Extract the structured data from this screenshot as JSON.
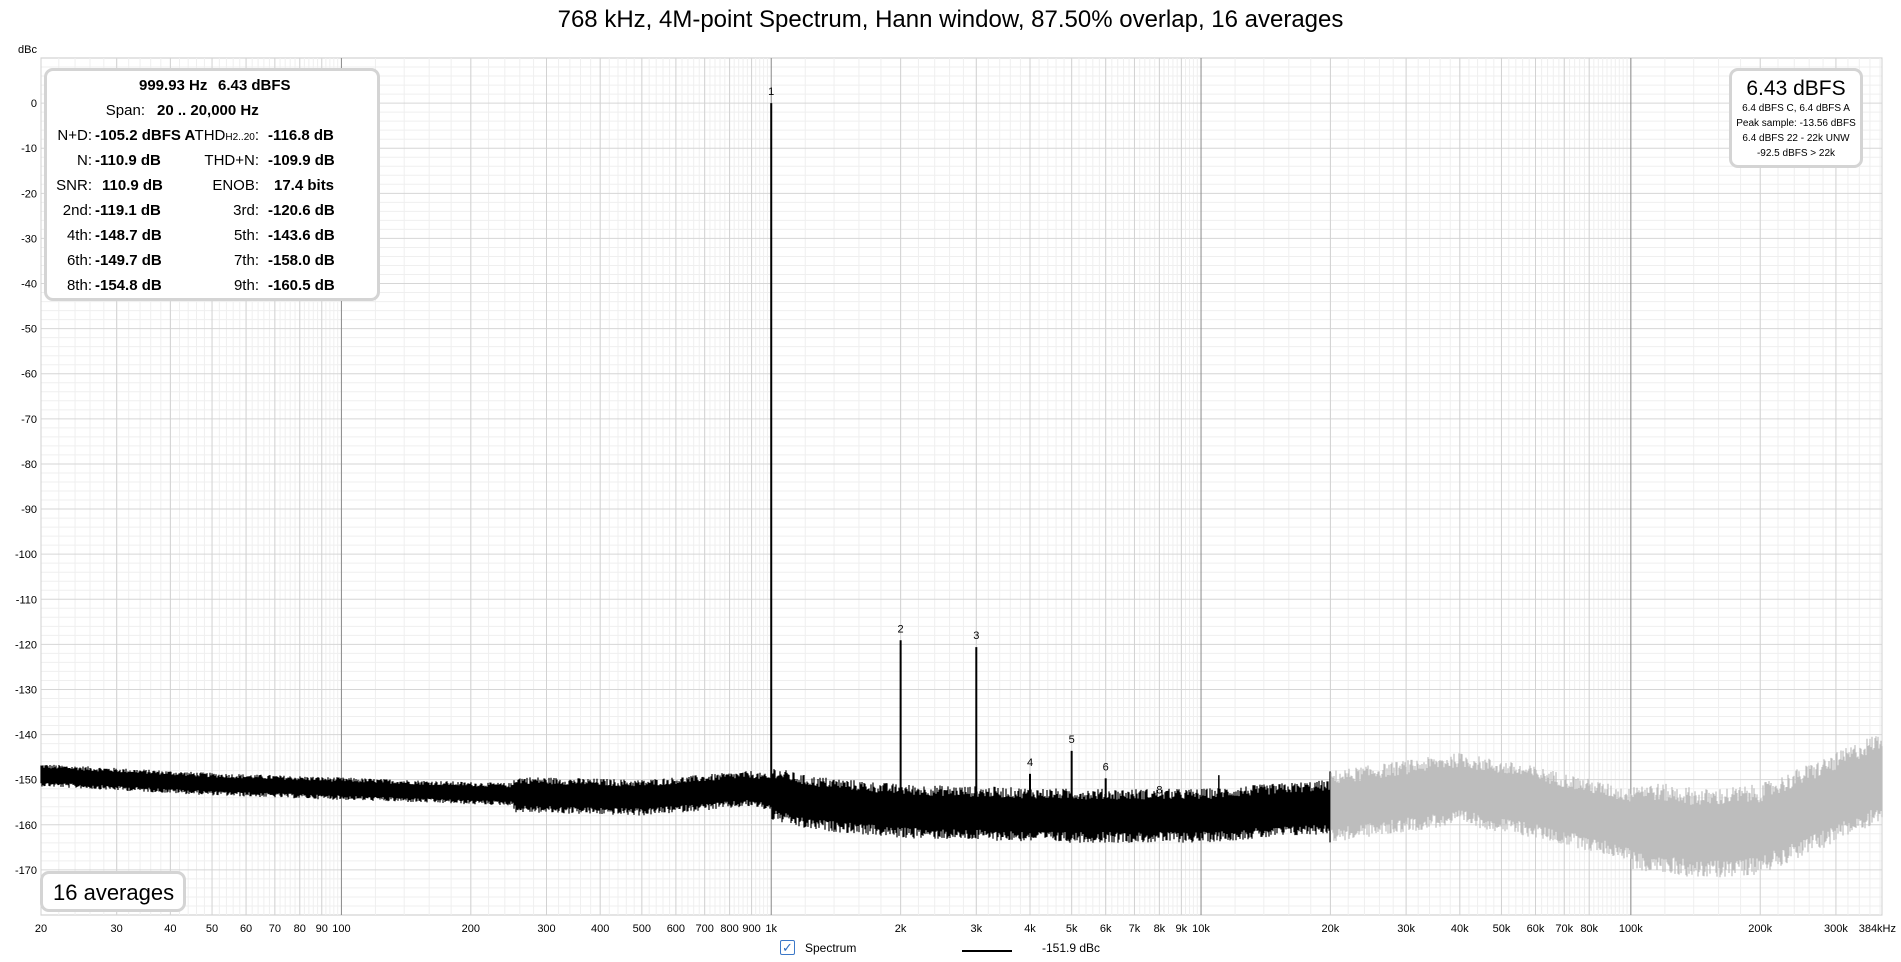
{
  "chart_data": {
    "type": "line",
    "title": "768 kHz, 4M-point Spectrum, Hann window, 87.50% overlap, 16 averages",
    "ylabel": "dBc",
    "x_scale": "log",
    "xlim": [
      20,
      384000
    ],
    "ylim": [
      -180,
      10
    ],
    "x_tick_labels": [
      {
        "x": 20,
        "label": "20"
      },
      {
        "x": 30,
        "label": "30"
      },
      {
        "x": 40,
        "label": "40"
      },
      {
        "x": 50,
        "label": "50"
      },
      {
        "x": 60,
        "label": "60"
      },
      {
        "x": 70,
        "label": "70"
      },
      {
        "x": 80,
        "label": "80"
      },
      {
        "x": 90,
        "label": "90"
      },
      {
        "x": 100,
        "label": "100"
      },
      {
        "x": 200,
        "label": "200"
      },
      {
        "x": 300,
        "label": "300"
      },
      {
        "x": 400,
        "label": "400"
      },
      {
        "x": 500,
        "label": "500"
      },
      {
        "x": 600,
        "label": "600"
      },
      {
        "x": 700,
        "label": "700"
      },
      {
        "x": 800,
        "label": "800"
      },
      {
        "x": 900,
        "label": "900"
      },
      {
        "x": 1000,
        "label": "1k"
      },
      {
        "x": 2000,
        "label": "2k"
      },
      {
        "x": 3000,
        "label": "3k"
      },
      {
        "x": 4000,
        "label": "4k"
      },
      {
        "x": 5000,
        "label": "5k"
      },
      {
        "x": 6000,
        "label": "6k"
      },
      {
        "x": 7000,
        "label": "7k"
      },
      {
        "x": 8000,
        "label": "8k"
      },
      {
        "x": 9000,
        "label": "9k"
      },
      {
        "x": 10000,
        "label": "10k"
      },
      {
        "x": 20000,
        "label": "20k"
      },
      {
        "x": 30000,
        "label": "30k"
      },
      {
        "x": 40000,
        "label": "40k"
      },
      {
        "x": 50000,
        "label": "50k"
      },
      {
        "x": 60000,
        "label": "60k"
      },
      {
        "x": 70000,
        "label": "70k"
      },
      {
        "x": 80000,
        "label": "80k"
      },
      {
        "x": 100000,
        "label": "100k"
      },
      {
        "x": 200000,
        "label": "200k"
      },
      {
        "x": 300000,
        "label": "300k"
      },
      {
        "x": 384000,
        "label": "384kHz"
      }
    ],
    "y_ticks": [
      0,
      -10,
      -20,
      -30,
      -40,
      -50,
      -60,
      -70,
      -80,
      -90,
      -100,
      -110,
      -120,
      -130,
      -140,
      -150,
      -160,
      -170
    ],
    "series": [
      {
        "name": "Spectrum",
        "color": "#000000",
        "out_of_band_color": "#bdbdbd",
        "out_of_band_from_hz": 20000,
        "noise_floor": {
          "freq": [
            20,
            50,
            100,
            200,
            500,
            900,
            1000,
            1200,
            2000,
            5000,
            10000,
            20000,
            40000,
            60000,
            100000,
            150000,
            200000,
            300000,
            384000
          ],
          "level": [
            -149,
            -151,
            -152,
            -153,
            -154,
            -152,
            -153,
            -155,
            -157,
            -158,
            -158,
            -156,
            -152,
            -155,
            -160,
            -162,
            -161,
            -154,
            -149
          ]
        },
        "harmonics": [
          {
            "n": "1",
            "freq": 1000,
            "level": 0
          },
          {
            "n": "2",
            "freq": 2000,
            "level": -119.1
          },
          {
            "n": "3",
            "freq": 3000,
            "level": -120.6
          },
          {
            "n": "4",
            "freq": 4000,
            "level": -148.7
          },
          {
            "n": "5",
            "freq": 5000,
            "level": -143.6
          },
          {
            "n": "6",
            "freq": 6000,
            "level": -149.7
          },
          {
            "n": "7",
            "freq": 7000,
            "level": -158.0
          },
          {
            "n": "8",
            "freq": 8000,
            "level": -154.8
          },
          {
            "n": "9",
            "freq": 9000,
            "level": -160.5
          }
        ],
        "other_spurs": [
          {
            "freq": 11000,
            "level": -149
          }
        ]
      }
    ]
  },
  "stats": {
    "header_freq": "999.93 Hz",
    "header_level": "6.43 dBFS",
    "span_label": "Span:",
    "span_value": "20 .. 20,000 Hz",
    "nd_label": "N+D:",
    "nd_value": "-105.2 dBFS A",
    "thd_label_main": "THD",
    "thd_label_sub": "H2..20",
    "thd_label_colon": ":",
    "thd_value": "-116.8 dB",
    "n_label": "N:",
    "n_value": "-110.9 dB",
    "thdn_label": "THD+N:",
    "thdn_value": "-109.9 dB",
    "snr_label": "SNR:",
    "snr_value": "110.9 dB",
    "enob_label": "ENOB:",
    "enob_value": "17.4 bits",
    "h2_label": "2nd:",
    "h2_value": "-119.1 dB",
    "h3_label": "3rd:",
    "h3_value": "-120.6 dB",
    "h4_label": "4th:",
    "h4_value": "-148.7 dB",
    "h5_label": "5th:",
    "h5_value": "-143.6 dB",
    "h6_label": "6th:",
    "h6_value": "-149.7 dB",
    "h7_label": "7th:",
    "h7_value": "-158.0 dB",
    "h8_label": "8th:",
    "h8_value": "-154.8 dB",
    "h9_label": "9th:",
    "h9_value": "-160.5 dB"
  },
  "level_box": {
    "main": "6.43 dBFS",
    "line1": "6.4 dBFS C, 6.4 dBFS A",
    "line2": "Peak sample: -13.56 dBFS",
    "line3": "6.4 dBFS 22 - 22k UNW",
    "line4": "-92.5 dBFS > 22k"
  },
  "averages_label": "16 averages",
  "legend": {
    "checkbox_glyph": "✓",
    "name": "Spectrum",
    "value": "-151.9 dBc"
  }
}
